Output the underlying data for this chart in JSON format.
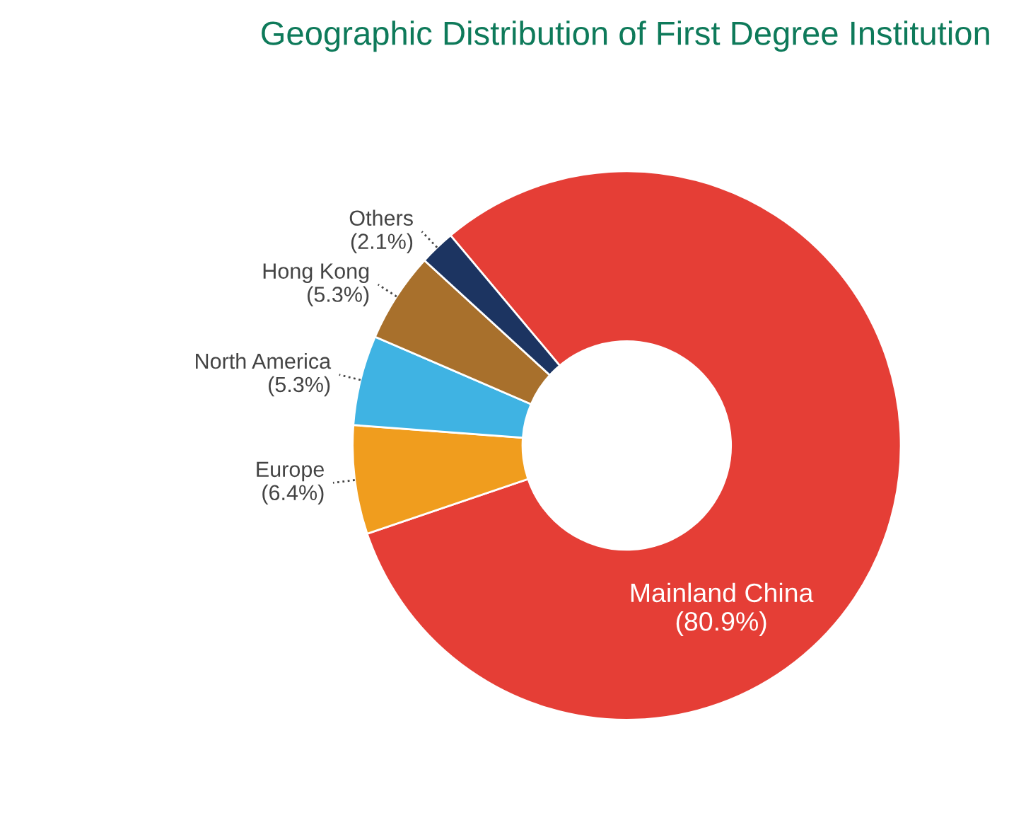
{
  "chart_data": {
    "type": "donut",
    "title": "Geographic Distribution of First Degree Institution",
    "categories": [
      "Mainland China",
      "Europe",
      "North America",
      "Hong Kong",
      "Others"
    ],
    "values": [
      80.9,
      6.4,
      5.3,
      5.3,
      2.1
    ],
    "value_labels": [
      "(80.9%)",
      "(6.4%)",
      "(5.3%)",
      "(5.3%)",
      "(2.1%)"
    ],
    "colors": [
      "#e53e36",
      "#f09d1e",
      "#3fb3e3",
      "#a8702c",
      "#1c3461"
    ],
    "legend": false
  }
}
